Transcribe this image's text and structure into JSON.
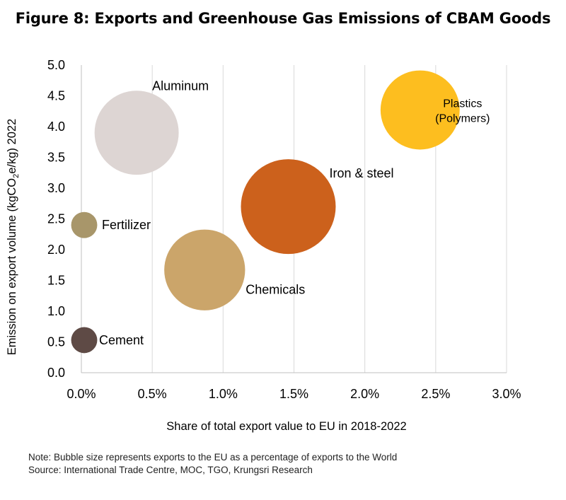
{
  "title": "Figure 8: Exports and Greenhouse Gas Emissions of CBAM Goods",
  "chart_data": {
    "type": "scatter",
    "xlabel": "Share of total export value to EU in 2018-2022",
    "ylabel_parts": [
      "Emission on export volume (kgCO",
      "2",
      "e/kg) 2022"
    ],
    "xlim": [
      0,
      0.03
    ],
    "ylim": [
      0,
      5.0
    ],
    "x_ticks": [
      "0.0%",
      "0.5%",
      "1.0%",
      "1.5%",
      "2.0%",
      "2.5%",
      "3.0%"
    ],
    "y_ticks": [
      "0.0",
      "0.5",
      "1.0",
      "1.5",
      "2.0",
      "2.5",
      "3.0",
      "3.5",
      "4.0",
      "4.5",
      "5.0"
    ],
    "grid": "vertical",
    "points": [
      {
        "label": [
          "Aluminum"
        ],
        "x": 0.0039,
        "y": 3.9,
        "size": 0.52,
        "color": "#DDD5D3"
      },
      {
        "label": [
          "Plastics",
          "(Polymers)"
        ],
        "x": 0.0239,
        "y": 4.27,
        "size": 0.46,
        "color": "#FDBE1F"
      },
      {
        "label": [
          "Iron & steel"
        ],
        "x": 0.0146,
        "y": 2.7,
        "size": 0.66,
        "color": "#CC611C"
      },
      {
        "label": [
          "Fertilizer"
        ],
        "x": 0.0002,
        "y": 2.4,
        "size": 0.05,
        "color": "#A8966A"
      },
      {
        "label": [
          "Chemicals"
        ],
        "x": 0.0087,
        "y": 1.67,
        "size": 0.48,
        "color": "#CBA56A"
      },
      {
        "label": [
          "Cement"
        ],
        "x": 0.0002,
        "y": 0.53,
        "size": 0.05,
        "color": "#5E4A45"
      }
    ]
  },
  "notes": {
    "line1": "Note: Bubble size represents exports to the EU as a percentage of exports to the World",
    "line2": "Source: International Trade Centre, MOC, TGO, Krungsri Research"
  }
}
